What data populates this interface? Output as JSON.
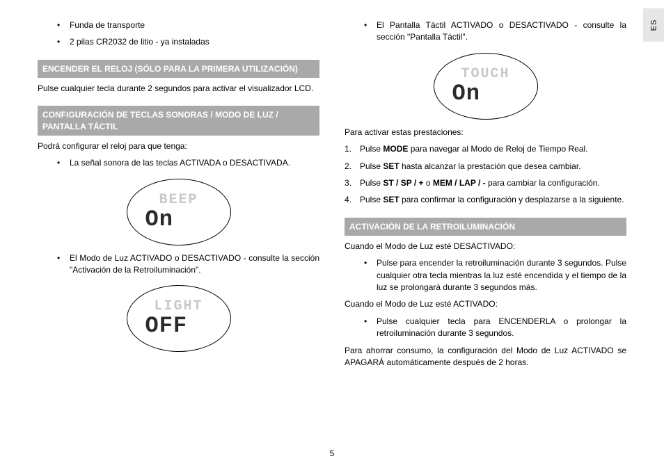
{
  "tab": "ES",
  "pagenum": "5",
  "col1": {
    "top_bullets": [
      "Funda de transporte",
      "2 pilas CR2032 de litio - ya instaladas"
    ],
    "head1": "ENCENDER EL RELOJ (SÓLO PARA LA PRIMERA UTILIZACIÓN)",
    "p1": "Pulse cualquier tecla durante 2 segundos para activar el visualizador LCD.",
    "head2": "CONFIGURACIÓN DE TECLAS SONORAS / MODO DE LUZ / PANTALLA TÁCTIL",
    "p2": "Podrá configurar el reloj para que tenga:",
    "b1": "La señal sonora de las teclas ACTIVADA o DESACTIVADA.",
    "lcd1_top": "BEEP",
    "lcd1_bot": "On",
    "b2": "El Modo de Luz ACTIVADO o DESACTIVADO - consulte la sección \"Activación de la Retroiluminación\".",
    "lcd2_top": "LIGHT",
    "lcd2_bot": "OFF"
  },
  "col2": {
    "b1": "El Pantalla Táctil ACTIVADO o DESACTIVADO - consulte la sección \"Pantalla Táctil\".",
    "lcd_top": "TOUCH",
    "lcd_bot": "On",
    "p1": "Para activar estas prestaciones:",
    "steps_pre": [
      "Pulse ",
      "MODE",
      " para navegar al Modo de Reloj de Tiempo Real."
    ],
    "step2": [
      "Pulse ",
      "SET",
      " hasta alcanzar la prestación que desea cambiar."
    ],
    "step3": [
      "Pulse ",
      "ST / SP / +",
      " o ",
      "MEM / LAP / -",
      " para cambiar la configuración."
    ],
    "step4": [
      "Pulse ",
      "SET",
      " para confirmar la configuración y desplazarse a la siguiente."
    ],
    "head1": "ACTIVACIÓN DE LA RETROILUMINACIÓN",
    "p2": "Cuando el Modo de Luz esté DESACTIVADO:",
    "b2": "Pulse para encender la retroiluminación durante 3 segundos. Pulse cualquier otra tecla mientras la luz esté encendida y el tiempo de la luz se prolongará durante 3 segundos más.",
    "p3": "Cuando el Modo de Luz esté ACTIVADO:",
    "b3": "Pulse cualquier tecla para ENCENDERLA o prolongar la retroiluminación durante 3 segundos.",
    "p4": "Para ahorrar consumo, la configuración del Modo de Luz ACTIVADO se APAGARÁ automáticamente después de 2 horas."
  }
}
